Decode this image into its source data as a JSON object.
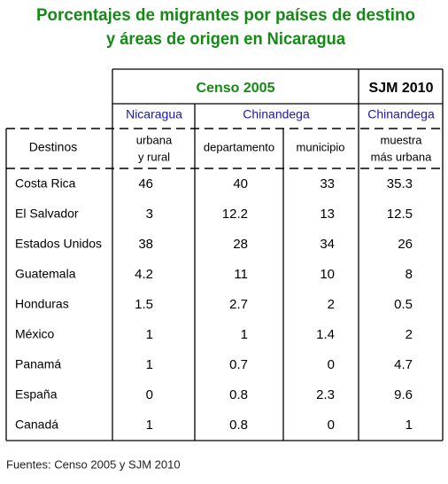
{
  "header": {
    "title": [
      "Porcentajes de migrantes por países de destino",
      "y áreas de origen en Nicaragua"
    ]
  },
  "table": {
    "group_headers": [
      "Censo 2005",
      "SJM 2010"
    ],
    "area_headers": [
      "Nicaragua",
      "Chinandega",
      "Chinandega"
    ],
    "columns": [
      "Destinos",
      [
        "urbana",
        "y rural"
      ],
      "departamento",
      "municipio",
      [
        "muestra",
        "más urbana"
      ]
    ],
    "rows": [
      [
        "Costa Rica",
        46,
        40,
        33,
        35.3
      ],
      [
        "El Salvador",
        3,
        12.2,
        13,
        12.5
      ],
      [
        "Estados Unidos",
        38,
        28,
        34,
        26
      ],
      [
        "Guatemala",
        4.2,
        11,
        10,
        8
      ],
      [
        "Honduras",
        1.5,
        2.7,
        2,
        0.5
      ],
      [
        "México",
        1,
        1,
        1.4,
        2
      ],
      [
        "Panamá",
        1,
        0.7,
        0,
        4.7
      ],
      [
        "España",
        0,
        0.8,
        2.3,
        9.6
      ],
      [
        "Canadá",
        1,
        0.8,
        0,
        1
      ]
    ]
  },
  "source": "Fuentes: Censo 2005 y SJM 2010"
}
